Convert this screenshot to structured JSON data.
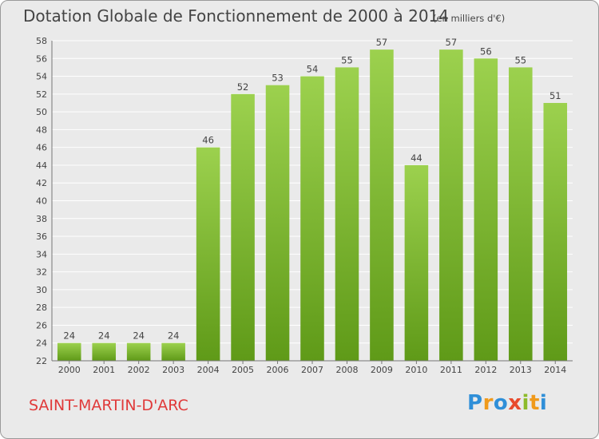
{
  "header": {
    "title": "Dotation Globale de Fonctionnement de 2000 à 2014",
    "subtitle": "(en milliers d'€)"
  },
  "footer": {
    "commune": "SAINT-MARTIN-D'ARC",
    "logo": "Proxiti"
  },
  "colors": {
    "bar_light": "#9cd14e",
    "bar_dark": "#5f9a18",
    "commune_text": "#e03a3a"
  },
  "chart_data": {
    "type": "bar",
    "categories": [
      "2000",
      "2001",
      "2002",
      "2003",
      "2004",
      "2005",
      "2006",
      "2007",
      "2008",
      "2009",
      "2010",
      "2011",
      "2012",
      "2013",
      "2014"
    ],
    "values": [
      24,
      24,
      24,
      24,
      46,
      52,
      53,
      54,
      55,
      57,
      44,
      57,
      56,
      55,
      51
    ],
    "data_labels": [
      "24",
      "24",
      "24",
      "24",
      "46",
      "52",
      "53",
      "54",
      "55",
      "57",
      "44",
      "57",
      "56",
      "55",
      "51"
    ],
    "ylim": [
      22,
      58
    ],
    "yticks": [
      "22",
      "24",
      "26",
      "28",
      "30",
      "32",
      "34",
      "36",
      "38",
      "40",
      "42",
      "44",
      "46",
      "48",
      "50",
      "52",
      "54",
      "56",
      "58"
    ],
    "grid": true,
    "title": "Dotation Globale de Fonctionnement de 2000 à 2014",
    "xlabel": "",
    "ylabel": ""
  }
}
